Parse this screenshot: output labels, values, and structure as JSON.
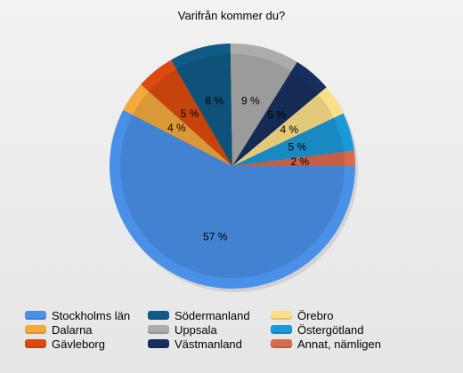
{
  "chart_data": {
    "type": "pie",
    "title": "Varifrån kommer du?",
    "slices": [
      {
        "name": "Stockholms län",
        "value": 57,
        "label": "57 %",
        "color": "#4a8fe8"
      },
      {
        "name": "Dalarna",
        "value": 4,
        "label": "4 %",
        "color": "#f3a93c"
      },
      {
        "name": "Gävleborg",
        "value": 5,
        "label": "5 %",
        "color": "#dc4a10"
      },
      {
        "name": "Södermanland",
        "value": 8,
        "label": "8 %",
        "color": "#0f5a86"
      },
      {
        "name": "Uppsala",
        "value": 9,
        "label": "9 %",
        "color": "#acacac"
      },
      {
        "name": "Västmanland",
        "value": 5,
        "label": "5 %",
        "color": "#172f5e"
      },
      {
        "name": "Örebro",
        "value": 4,
        "label": "4 %",
        "color": "#fcdf88"
      },
      {
        "name": "Östergötland",
        "value": 5,
        "label": "5 %",
        "color": "#1b98d8"
      },
      {
        "name": "Annat, nämligen",
        "value": 2,
        "label": "2 %",
        "color": "#d86a4e"
      }
    ],
    "legend_position": "bottom",
    "legend_order": [
      "Stockholms län",
      "Dalarna",
      "Gävleborg",
      "Södermanland",
      "Uppsala",
      "Västmanland",
      "Örebro",
      "Östergötland",
      "Annat, nämligen"
    ]
  }
}
